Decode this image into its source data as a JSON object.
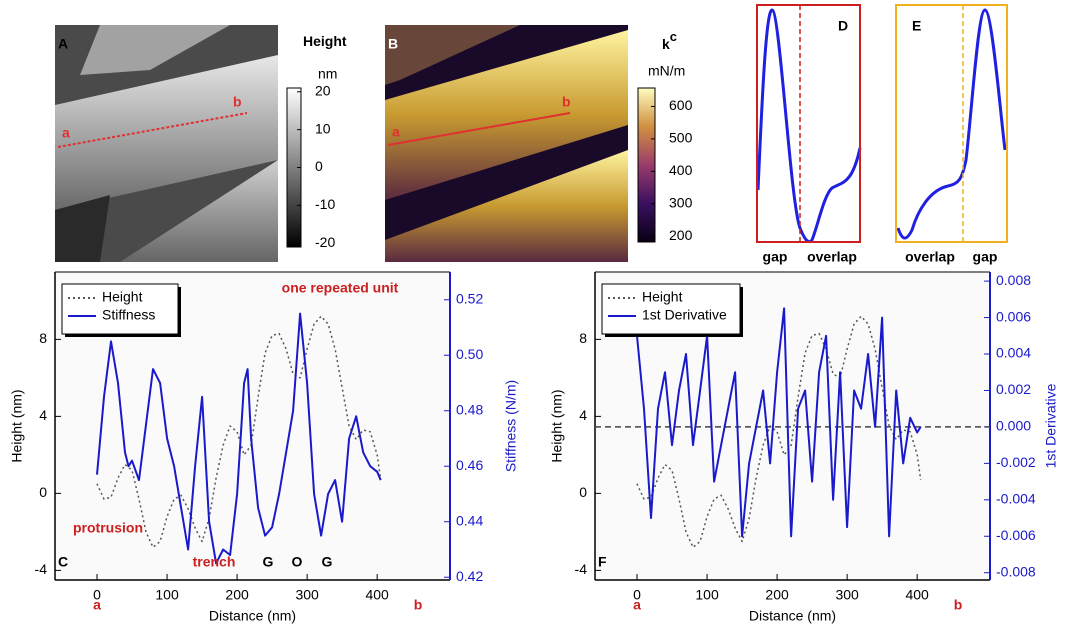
{
  "images": [
    {
      "label": "A",
      "colorbar_title": "Height",
      "colorbar_unit": "nm",
      "clim": [
        -21,
        21
      ],
      "cticks": [
        20,
        10,
        0,
        -10,
        -20
      ],
      "colors": [
        "#000000",
        "#ffffff"
      ],
      "point_a": "a",
      "point_b": "b"
    },
    {
      "label": "B",
      "colorbar_title": "k",
      "colorbar_title_sup": "c",
      "colorbar_unit": "mN/m",
      "clim": [
        182,
        657
      ],
      "cticks": [
        600,
        500,
        400,
        300,
        200
      ],
      "colors": [
        "#0a0014",
        "#3a1060",
        "#9a3c6a",
        "#d09040",
        "#fffcc0"
      ],
      "point_a": "a",
      "point_b": "b"
    }
  ],
  "insets": [
    {
      "label": "D",
      "left": "gap",
      "right": "overlap",
      "color": "#cc2020"
    },
    {
      "label": "E",
      "left": "overlap",
      "right": "gap",
      "color": "#f0b020"
    }
  ],
  "chart_data": [
    {
      "type": "line",
      "label": "C",
      "xlabel": "Distance (nm)",
      "ylabel": "Height (nm)",
      "y2label": "Stiffness (N/m)",
      "x_start_label": "a",
      "x_end_label": "b",
      "xlim": [
        -60,
        504
      ],
      "xticks": [
        0,
        100,
        200,
        300,
        400
      ],
      "ylim": [
        -4.5,
        11.5
      ],
      "yticks": [
        -4,
        0,
        4,
        8
      ],
      "y2lim": [
        0.419,
        0.53
      ],
      "y2ticks": [
        0.42,
        0.44,
        0.46,
        0.48,
        {
          "value": 0.5,
          "label": "0.50"
        },
        0.52
      ],
      "legend": "upper left",
      "annotations": [
        "one repeated unit",
        "protrusion",
        "trench",
        "G",
        "O",
        "G"
      ],
      "series": [
        {
          "name": "Height",
          "color": "#555555",
          "line_style": "dotted",
          "x": [
            0,
            10,
            20,
            30,
            40,
            50,
            60,
            70,
            80,
            90,
            100,
            110,
            120,
            130,
            140,
            150,
            160,
            170,
            180,
            190,
            200,
            210,
            220,
            230,
            240,
            250,
            260,
            270,
            280,
            290,
            300,
            310,
            320,
            330,
            340,
            350,
            360,
            370,
            380,
            390,
            400,
            405
          ],
          "values": [
            0.5,
            -0.3,
            -0.2,
            0.8,
            1.5,
            1.2,
            -0.3,
            -2,
            -2.8,
            -2.5,
            -1.2,
            -0.3,
            -0.1,
            -0.8,
            -1.8,
            -2.5,
            -1.3,
            0.8,
            2.5,
            3.5,
            3.2,
            2,
            2.5,
            5,
            7.3,
            8.2,
            8.3,
            7.5,
            6.2,
            6,
            7.5,
            8.8,
            9.2,
            8.8,
            7.5,
            5.5,
            3.5,
            2.8,
            3.3,
            3.2,
            2,
            0.7
          ]
        },
        {
          "name": "Stiffness",
          "color": "#1a1acc",
          "line_style": "solid",
          "axis": "y2",
          "x": [
            0,
            10,
            20,
            30,
            40,
            45,
            50,
            60,
            70,
            80,
            90,
            100,
            110,
            120,
            130,
            140,
            150,
            160,
            170,
            180,
            190,
            200,
            210,
            215,
            220,
            230,
            240,
            250,
            260,
            270,
            280,
            290,
            300,
            310,
            320,
            330,
            340,
            350,
            360,
            370,
            380,
            390,
            400,
            405
          ],
          "values": [
            0.457,
            0.485,
            0.505,
            0.49,
            0.465,
            0.46,
            0.462,
            0.455,
            0.475,
            0.495,
            0.49,
            0.47,
            0.46,
            0.445,
            0.43,
            0.46,
            0.485,
            0.44,
            0.425,
            0.43,
            0.428,
            0.45,
            0.49,
            0.495,
            0.47,
            0.445,
            0.435,
            0.438,
            0.45,
            0.465,
            0.48,
            0.515,
            0.49,
            0.45,
            0.435,
            0.45,
            0.455,
            0.44,
            0.47,
            0.478,
            0.465,
            0.46,
            0.458,
            0.455
          ]
        }
      ]
    },
    {
      "type": "line",
      "label": "F",
      "xlabel": "Distance (nm)",
      "ylabel": "Height (nm)",
      "y2label": "1st Derivative",
      "x_start_label": "a",
      "x_end_label": "b",
      "xlim": [
        -60,
        504
      ],
      "xticks": [
        0,
        100,
        200,
        300,
        400
      ],
      "ylim": [
        -4.5,
        11.5
      ],
      "yticks": [
        -4,
        0,
        4,
        8
      ],
      "y2lim": [
        -0.0084,
        0.0085
      ],
      "y2ticks": [
        {
          "value": -0.008,
          "label": "-0.008"
        },
        -0.006,
        -0.004,
        -0.002,
        {
          "value": 0,
          "label": "0.000"
        },
        0.002,
        0.004,
        0.006,
        0.008
      ],
      "reference_line_y2": 0,
      "legend": "upper left",
      "series": [
        {
          "name": "Height",
          "color": "#555555",
          "line_style": "dotted",
          "x": [
            0,
            10,
            20,
            30,
            40,
            50,
            60,
            70,
            80,
            90,
            100,
            110,
            120,
            130,
            140,
            150,
            160,
            170,
            180,
            190,
            200,
            210,
            220,
            230,
            240,
            250,
            260,
            270,
            280,
            290,
            300,
            310,
            320,
            330,
            340,
            350,
            360,
            370,
            380,
            390,
            400,
            405
          ],
          "values": [
            0.5,
            -0.3,
            -0.2,
            0.8,
            1.5,
            1.2,
            -0.3,
            -2,
            -2.8,
            -2.5,
            -1.2,
            -0.3,
            -0.1,
            -0.8,
            -1.8,
            -2.5,
            -1.3,
            0.8,
            2.5,
            3.5,
            3.2,
            2,
            2.5,
            5,
            7.3,
            8.2,
            8.3,
            7.5,
            6.2,
            6,
            7.5,
            8.8,
            9.2,
            8.8,
            7.5,
            5.5,
            3.5,
            2.8,
            3.3,
            3.2,
            2,
            0.7
          ]
        },
        {
          "name": "1st Derivative",
          "color": "#1a1acc",
          "line_style": "solid",
          "axis": "y2",
          "x": [
            0,
            10,
            20,
            30,
            40,
            50,
            60,
            70,
            80,
            90,
            100,
            110,
            120,
            130,
            140,
            150,
            160,
            170,
            180,
            190,
            200,
            210,
            220,
            230,
            240,
            250,
            260,
            270,
            280,
            290,
            300,
            310,
            320,
            330,
            340,
            350,
            360,
            370,
            380,
            390,
            400,
            405
          ],
          "values": [
            0.005,
            0.001,
            -0.005,
            0.001,
            0.003,
            -0.001,
            0.002,
            0.004,
            -0.001,
            0.002,
            0.005,
            -0.003,
            -0.001,
            0.001,
            0.003,
            -0.006,
            -0.002,
            0,
            0.002,
            -0.002,
            0.003,
            0.0065,
            -0.006,
            0.001,
            0.002,
            -0.003,
            0.003,
            0.005,
            -0.004,
            0.003,
            -0.0055,
            0.002,
            0.001,
            0.004,
            0,
            0.006,
            -0.006,
            0.002,
            -0.002,
            0.0005,
            -0.0003,
            0
          ]
        }
      ]
    }
  ]
}
